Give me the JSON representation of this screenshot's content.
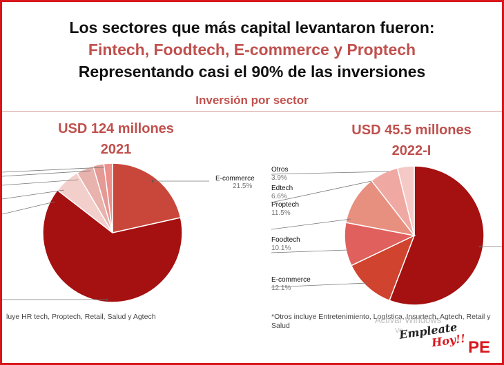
{
  "header": {
    "line1": "Los sectores que más capital levantaron fueron:",
    "line2": "Fintech, Foodtech, E-commerce y Proptech",
    "line3": "Representando casi el 90% de las inversiones",
    "subtitle": "Inversión por sector"
  },
  "chart_data": [
    {
      "type": "pie",
      "title": "USD 124 millones",
      "subtitle": "2021",
      "slices": [
        {
          "label": "E-commerce",
          "value": 21.5,
          "color": "#c9473a",
          "pct_text": "21.5%"
        },
        {
          "label": "",
          "value": 64.0,
          "color": "#a51010",
          "pct_text": ""
        },
        {
          "label": "",
          "value": 6.0,
          "color": "#f3cfcb",
          "pct_text": ""
        },
        {
          "label": "",
          "value": 4.0,
          "color": "#e8b2ad",
          "pct_text": ""
        },
        {
          "label": "",
          "value": 2.5,
          "color": "#e49a95",
          "pct_text": ""
        },
        {
          "label": "",
          "value": 2.0,
          "color": "#ee8f8b",
          "pct_text": ""
        }
      ],
      "footnote": "luye  HR tech, Proptech, Retail, Salud y Agtech"
    },
    {
      "type": "pie",
      "title": "USD 45.5 millones",
      "subtitle": "2022-I",
      "slices": [
        {
          "label": "",
          "value": 55.8,
          "color": "#a51010",
          "pct_text": ""
        },
        {
          "label": "E-commerce",
          "value": 12.1,
          "color": "#d0432e",
          "pct_text": "12.1%"
        },
        {
          "label": "Foodtech",
          "value": 10.1,
          "color": "#e0605e",
          "pct_text": "10.1%"
        },
        {
          "label": "Proptech",
          "value": 11.5,
          "color": "#e8907f",
          "pct_text": "11.5%"
        },
        {
          "label": "Edtech",
          "value": 6.6,
          "color": "#f0a8a3",
          "pct_text": "6.6%"
        },
        {
          "label": "Otros",
          "value": 3.9,
          "color": "#f5c9c5",
          "pct_text": "3.9%"
        }
      ],
      "footnote": "*Otros incluye Entretenimiento, Logística, Insurtech, Agtech, Retail y Salud"
    }
  ],
  "watermark": {
    "line1": "Activar Windows",
    "line2": "Ve"
  },
  "logo": {
    "part1": "Empleate",
    "part2": "Hoy!!",
    "brand": "PE"
  }
}
